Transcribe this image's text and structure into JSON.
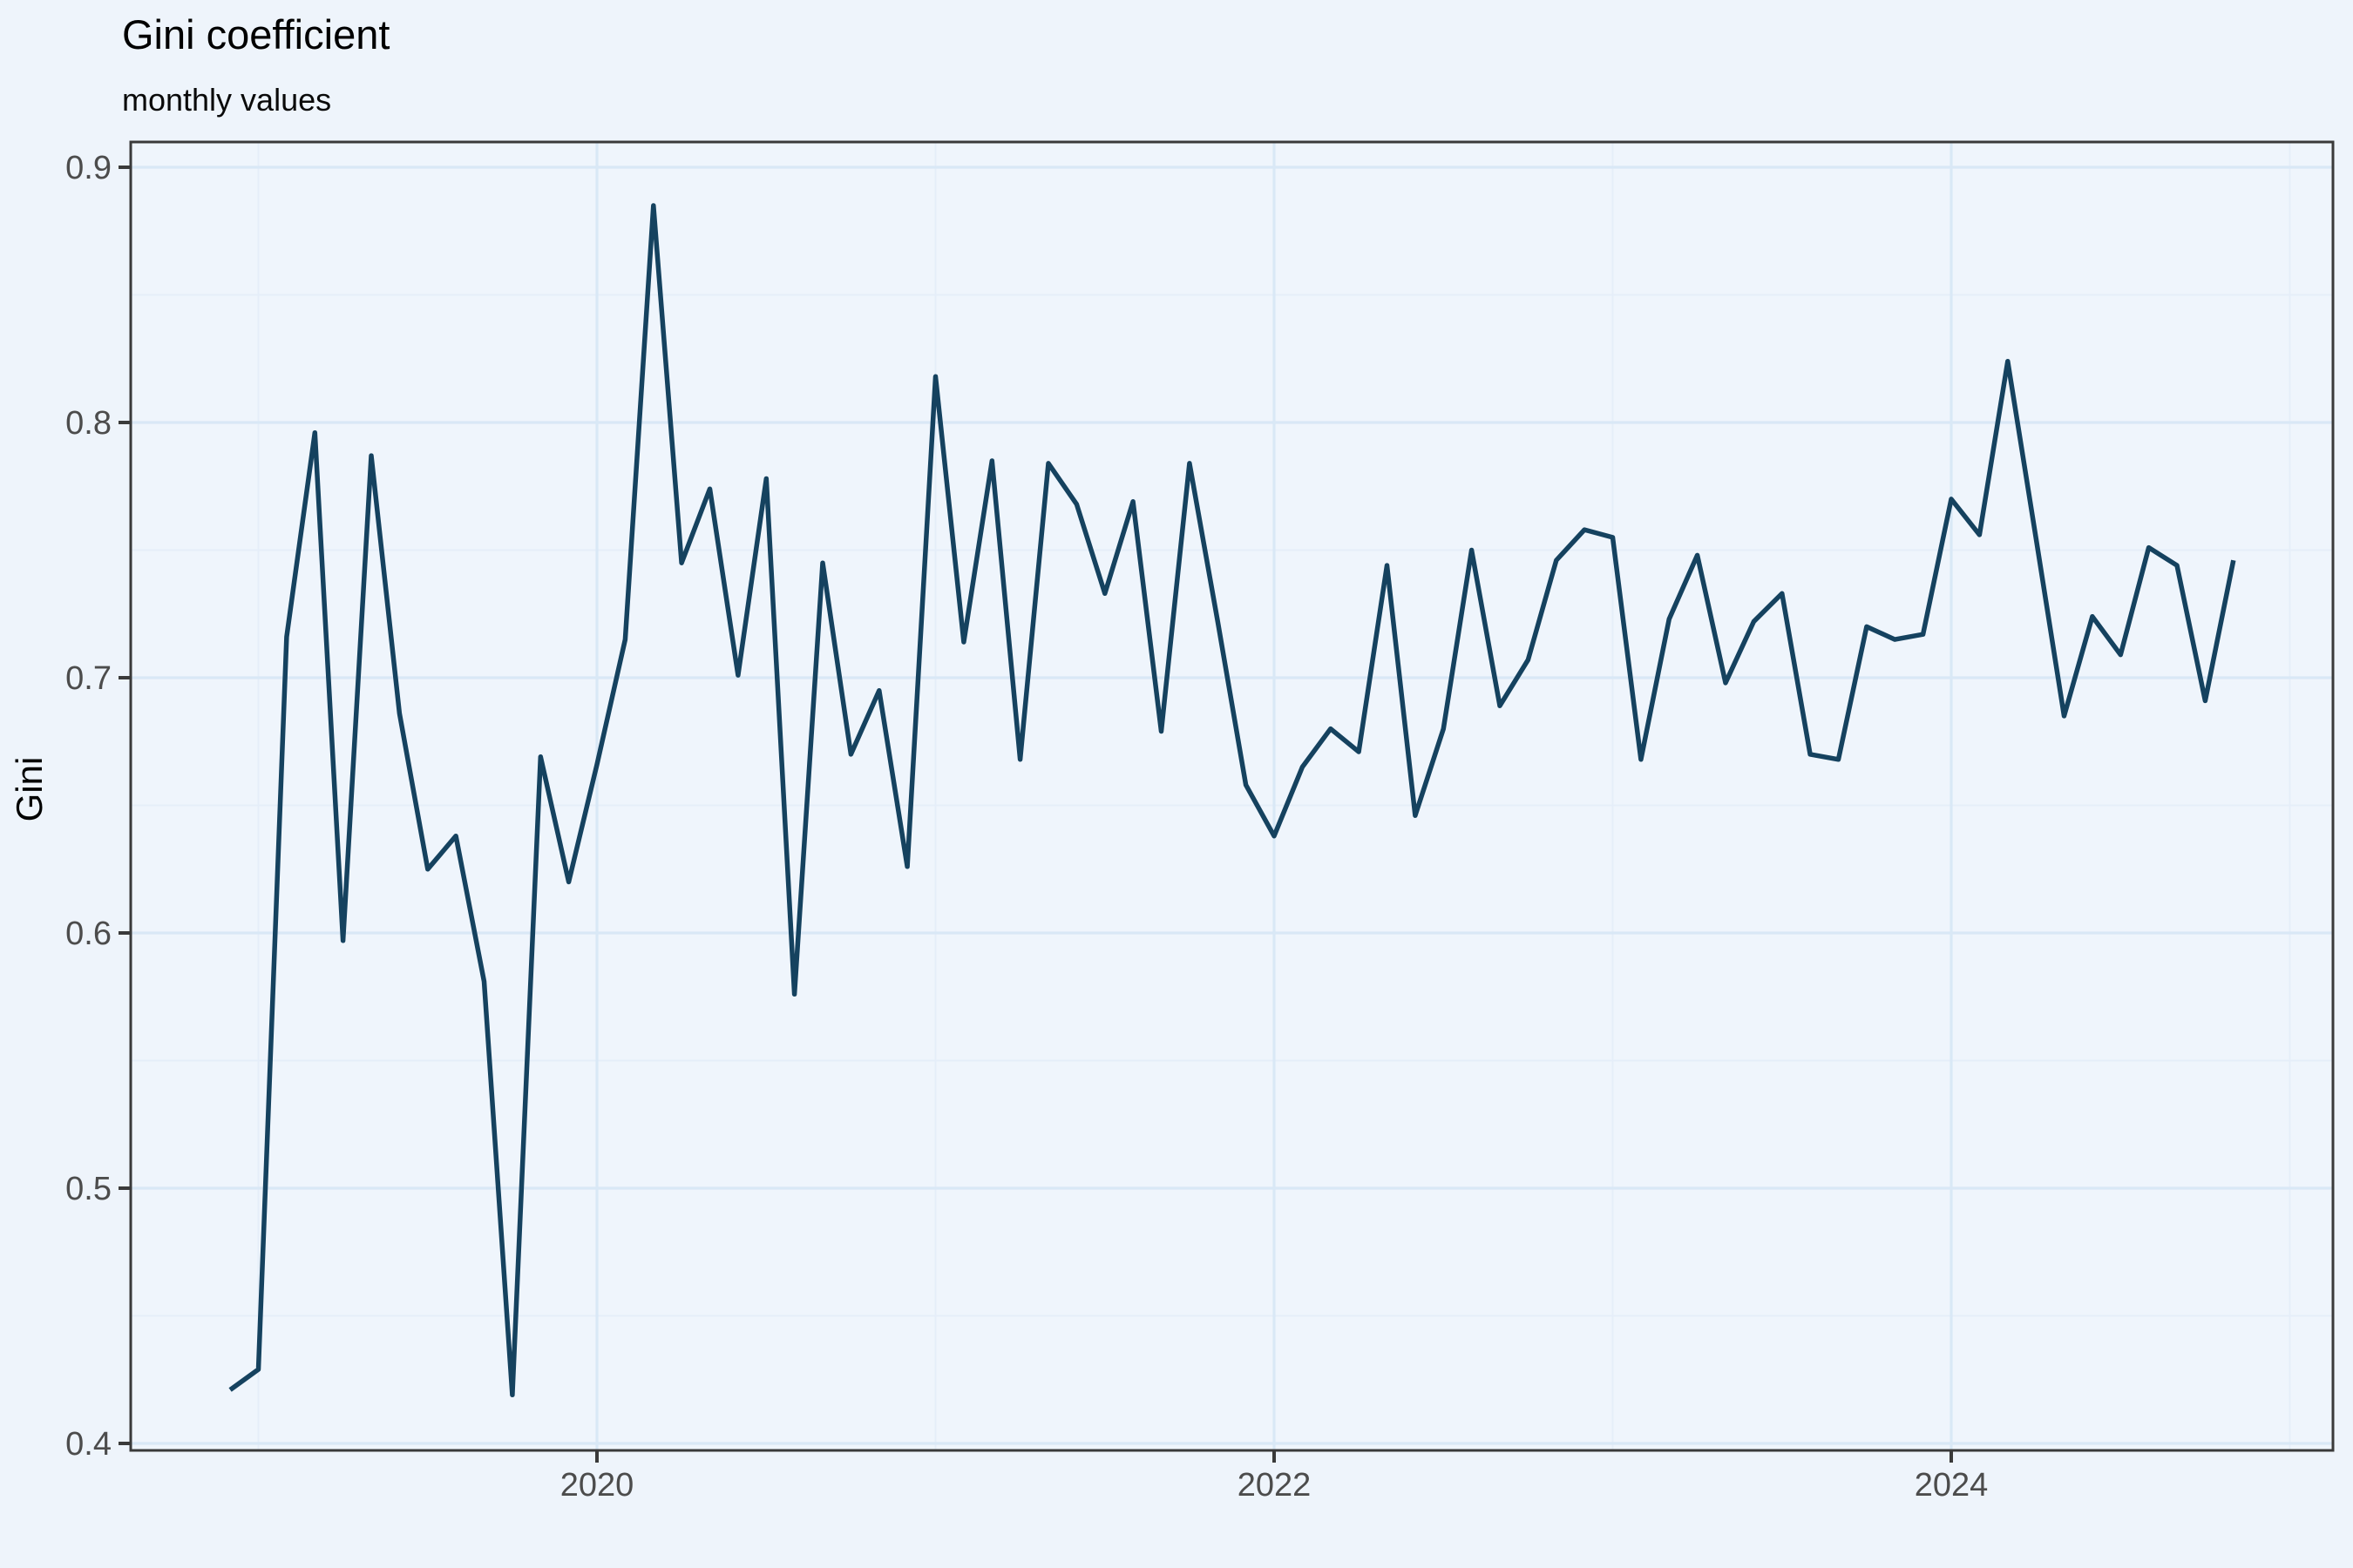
{
  "chart_data": {
    "type": "line",
    "title": "Gini coefficient",
    "subtitle": "monthly values",
    "ylabel": "Gini",
    "xlabel": "",
    "legend": "none",
    "grid": "on",
    "x_start_month": "2018-12",
    "x_end_month": "2024-11",
    "frequency": "monthly",
    "series": [
      {
        "name": "Gini",
        "values": [
          0.421,
          0.429,
          0.716,
          0.796,
          0.597,
          0.787,
          0.686,
          0.625,
          0.638,
          0.581,
          0.419,
          0.669,
          0.62,
          0.666,
          0.715,
          0.885,
          0.745,
          0.774,
          0.701,
          0.778,
          0.576,
          0.745,
          0.67,
          0.695,
          0.626,
          0.818,
          0.714,
          0.785,
          0.668,
          0.784,
          0.768,
          0.733,
          0.769,
          0.679,
          0.784,
          0.722,
          0.658,
          0.638,
          0.665,
          0.68,
          0.671,
          0.744,
          0.646,
          0.68,
          0.75,
          0.689,
          0.707,
          0.746,
          0.758,
          0.755,
          0.668,
          0.723,
          0.748,
          0.698,
          0.722,
          0.733,
          0.67,
          0.668,
          0.72,
          0.715,
          0.717,
          0.77,
          0.756,
          0.824,
          0.755,
          0.685,
          0.724,
          0.709,
          0.751,
          0.744,
          0.691,
          0.746
        ]
      }
    ],
    "y_axis": {
      "ticks": [
        {
          "label": "0.4",
          "value": 0.4
        },
        {
          "label": "0.5",
          "value": 0.5
        },
        {
          "label": "0.6",
          "value": 0.6
        },
        {
          "label": "0.7",
          "value": 0.7
        },
        {
          "label": "0.8",
          "value": 0.8
        },
        {
          "label": "0.9",
          "value": 0.9
        }
      ],
      "minor_values": [
        0.45,
        0.55,
        0.65,
        0.75,
        0.85
      ],
      "range_shown": [
        0.4,
        0.9
      ]
    },
    "x_axis": {
      "major_ticks": [
        {
          "label": "2020",
          "year": 2020
        },
        {
          "label": "2022",
          "year": 2022
        },
        {
          "label": "2024",
          "year": 2024
        }
      ],
      "minor_years": [
        2019,
        2021,
        2023,
        2025
      ]
    },
    "colors": {
      "line": "#15425f",
      "background": "#eef4fb",
      "panel_background": "#eff5fc",
      "grid_major": "#d9e8f6",
      "grid_minor": "#e5eef9",
      "panel_border": "#3a3a3a",
      "tick_mark": "#3a3a3a",
      "tick_label": "#4c4c4c",
      "title_text": "#000000"
    }
  }
}
